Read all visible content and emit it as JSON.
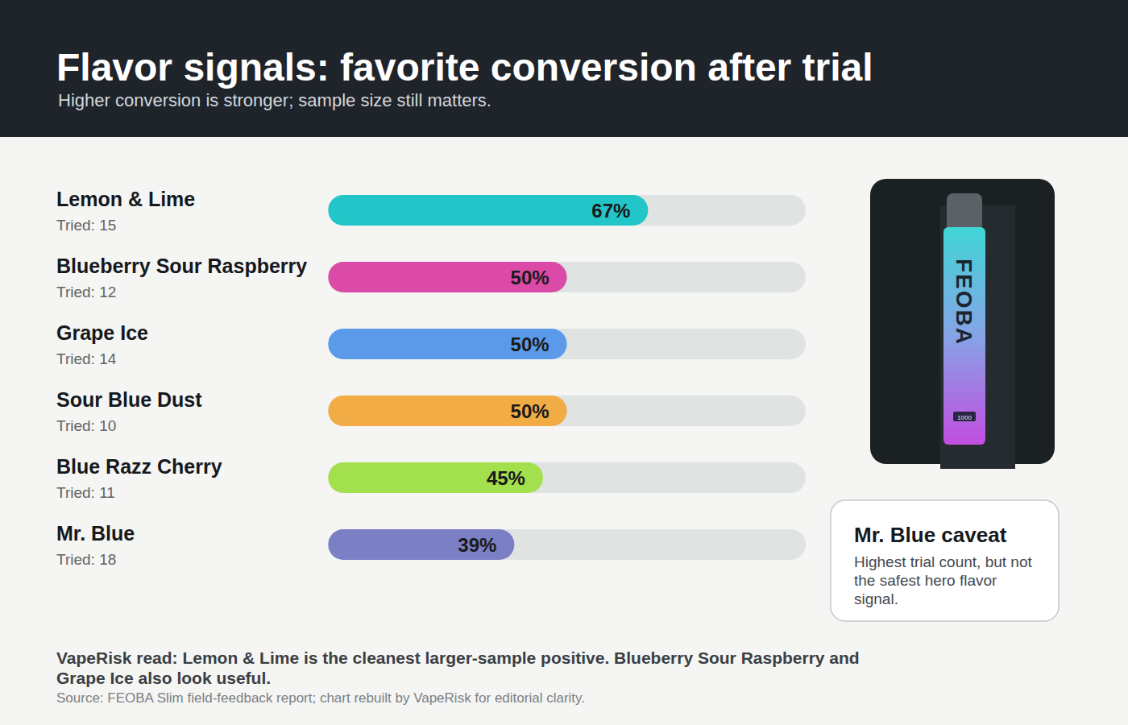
{
  "chart_data": {
    "type": "bar",
    "orientation": "horizontal",
    "title": "Flavor signals: favorite conversion after trial",
    "subtitle": "Higher conversion is stronger; sample size still matters.",
    "categories": [
      "Lemon & Lime",
      "Blueberry Sour Raspberry",
      "Grape Ice",
      "Sour Blue Dust",
      "Blue Razz Cherry",
      "Mr. Blue"
    ],
    "sample_labels": [
      "Tried: 15",
      "Tried: 12",
      "Tried: 14",
      "Tried: 10",
      "Tried: 11",
      "Tried: 18"
    ],
    "values": [
      67,
      50,
      50,
      50,
      45,
      39
    ],
    "value_labels": [
      "67%",
      "50%",
      "50%",
      "50%",
      "45%",
      "39%"
    ],
    "colors": [
      "#22c5c8",
      "#dc4aa8",
      "#5b9ae8",
      "#f2ac45",
      "#a3e04e",
      "#7a7fc6"
    ],
    "xlim": [
      0,
      100
    ],
    "data_labels": true,
    "tick_labels": false,
    "grid": false,
    "caveat": {
      "title": "Mr. Blue caveat",
      "text": "Highest trial count, but not the safest hero flavor signal."
    },
    "note": "VapeRisk read: Lemon & Lime is the cleanest larger-sample positive. Blueberry Sour Raspberry and Grape Ice also look useful.",
    "source": "Source: FEOBA Slim field-feedback report; chart rebuilt by VapeRisk for editorial clarity.",
    "image": {
      "brand": "FEOBA",
      "badge": "1000"
    }
  }
}
